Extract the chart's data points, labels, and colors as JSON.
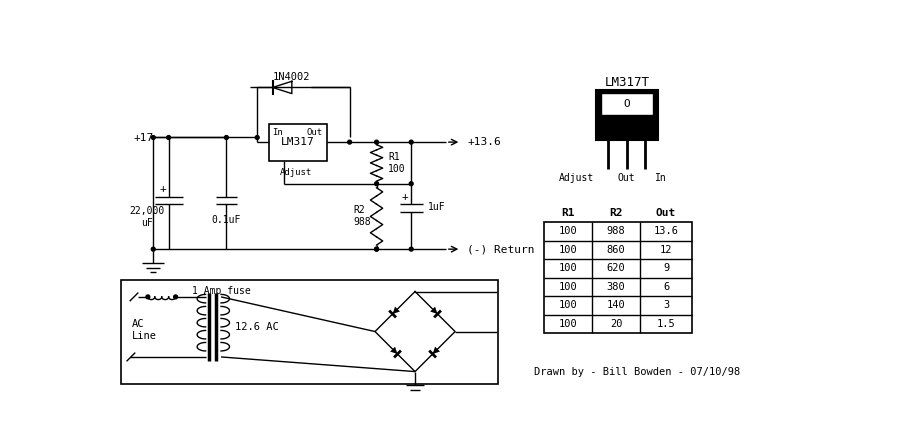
{
  "bg_color": "#ffffff",
  "line_color": "#000000",
  "table_headers": [
    "R1",
    "R2",
    "Out"
  ],
  "table_data": [
    [
      "100",
      "988",
      "13.6"
    ],
    [
      "100",
      "860",
      "12"
    ],
    [
      "100",
      "620",
      "9"
    ],
    [
      "100",
      "380",
      "6"
    ],
    [
      "100",
      "140",
      "3"
    ],
    [
      "100",
      "20",
      "1.5"
    ]
  ],
  "caption": "Drawn by - Bill Bowden - 07/10/98",
  "lm317_label": "LM317T",
  "diode_label": "1N4002",
  "voltage_in": "+17",
  "voltage_out": "+13.6",
  "return_label": "(-) Return",
  "cap1_label": "22,000\nuF",
  "cap2_label": "0.1uF",
  "cap3_label": "1uF",
  "r1_label": "R1\n100",
  "r2_label": "R2\n988",
  "adjust_label": "Adjust",
  "fuse_label": "1 Amp fuse",
  "ac_label": "AC\nLine",
  "ac_voltage": "12.6 AC",
  "ic_label": "LM317",
  "in_label": "In",
  "out_label": "Out"
}
